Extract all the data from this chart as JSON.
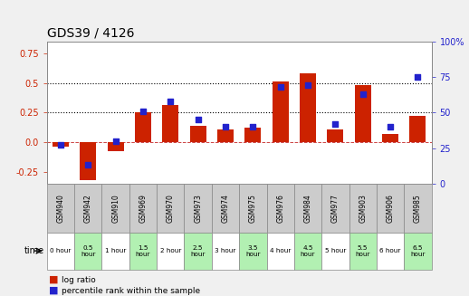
{
  "title": "GDS39 / 4126",
  "categories": [
    "GSM940",
    "GSM942",
    "GSM910",
    "GSM969",
    "GSM970",
    "GSM973",
    "GSM974",
    "GSM975",
    "GSM976",
    "GSM984",
    "GSM977",
    "GSM903",
    "GSM906",
    "GSM985"
  ],
  "time_labels": [
    "0 hour",
    "0.5\nhour",
    "1 hour",
    "1.5\nhour",
    "2 hour",
    "2.5\nhour",
    "3 hour",
    "3.5\nhour",
    "4 hour",
    "4.5\nhour",
    "5 hour",
    "5.5\nhour",
    "6 hour",
    "6.5\nhour"
  ],
  "time_bg": [
    "white",
    "#b2f0b2",
    "white",
    "#b2f0b2",
    "white",
    "#b2f0b2",
    "white",
    "#b2f0b2",
    "white",
    "#b2f0b2",
    "white",
    "#b2f0b2",
    "white",
    "#b2f0b2"
  ],
  "log_ratio": [
    -0.04,
    -0.32,
    -0.08,
    0.25,
    0.31,
    0.14,
    0.11,
    0.12,
    0.51,
    0.58,
    0.11,
    0.48,
    0.07,
    0.22
  ],
  "percentile": [
    27,
    13,
    30,
    51,
    58,
    45,
    40,
    40,
    68,
    69,
    42,
    63,
    40,
    75
  ],
  "ylim_left": [
    -0.35,
    0.85
  ],
  "ylim_right": [
    0,
    100
  ],
  "yticks_left": [
    -0.25,
    0.0,
    0.25,
    0.5,
    0.75
  ],
  "yticks_right": [
    0,
    25,
    50,
    75,
    100
  ],
  "bar_color": "#cc2200",
  "dot_color": "#2222cc",
  "hline_y": [
    0.25,
    0.5
  ],
  "zero_line_color": "#cc4444",
  "bg_color": "#f0f0f0",
  "plot_bg": "white",
  "title_fontsize": 10,
  "tick_fontsize": 7,
  "cat_fontsize": 5.5,
  "time_fontsize": 5.2,
  "legend_fontsize": 6.5
}
